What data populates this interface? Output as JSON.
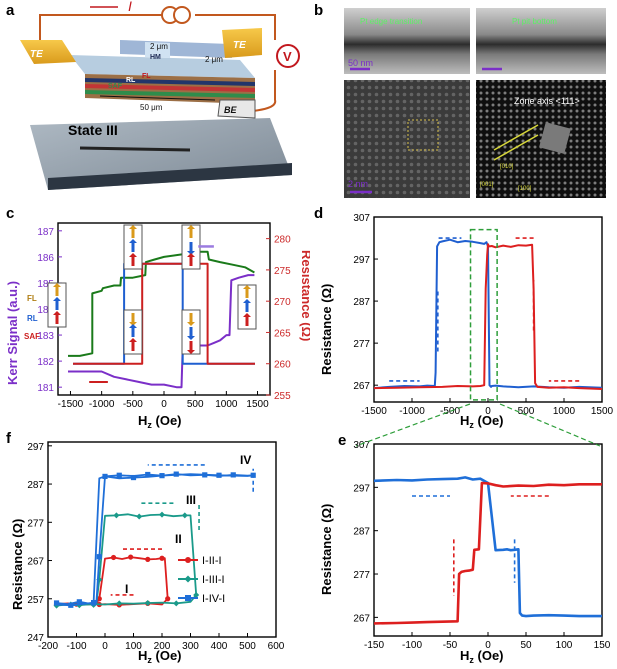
{
  "panels": {
    "a": {
      "label": "a",
      "te_left": "TE",
      "te_right": "TE",
      "current": "I",
      "voltmeter": "V",
      "hm": "HM",
      "fl": "FL",
      "rl": "RL",
      "saf": "SAF",
      "be": "BE",
      "dim_top": "2 μm",
      "dim_side": "2 μm",
      "dim_len": "50 μm",
      "state": "State III"
    },
    "b": {
      "label": "b",
      "tl_caption": "Pt edge transition",
      "tr_caption": "Pt pit bottom",
      "scale_top": "50 nm",
      "scale_bottom": "2 nm",
      "zone_axis": "Zone axis <111>",
      "idx_1": "[010]",
      "idx_2": "[001]",
      "idx_3": "[100]"
    },
    "c": {
      "label": "c",
      "ylabel_left": "Kerr Signal (a.u.)",
      "ylabel_right": "Resistance (Ω)",
      "xlabel": "H",
      "xlabel_sub": "z",
      "xlabel_unit": " (Oe)",
      "layer_fl": "FL",
      "layer_rl": "RL",
      "layer_saf": "SAF"
    },
    "d": {
      "label": "d",
      "ylabel": "Resistance (Ω)",
      "xlabel": "H",
      "xlabel_sub": "z",
      "xlabel_unit": " (Oe)"
    },
    "e": {
      "label": "e",
      "ylabel": "Resistance (Ω)",
      "xlabel": "H",
      "xlabel_sub": "z",
      "xlabel_unit": " (Oe)"
    },
    "f": {
      "label": "f",
      "ylabel": "Resistance (Ω)",
      "xlabel": "H",
      "xlabel_sub": "z",
      "xlabel_unit": " (Oe)",
      "state_1": "I",
      "state_2": "II",
      "state_3": "III",
      "state_4": "IV"
    }
  },
  "chart_data": [
    {
      "id": "c",
      "type": "line",
      "xlim": [
        -1700,
        1700
      ],
      "xticks": [
        -1500,
        -1000,
        -500,
        0,
        500,
        1000,
        1500
      ],
      "ylim": [
        180.7,
        187.3
      ],
      "yticks": [
        181,
        182,
        183,
        184,
        185,
        186,
        187
      ],
      "y2lim": [
        255,
        282.5
      ],
      "y2ticks": [
        255,
        260,
        265,
        270,
        275,
        280
      ],
      "colors": {
        "kerr_down": "#1a7a1a",
        "kerr_up": "#7b2fc8",
        "res_blue": "#1f5fd0",
        "res_red": "#cc1f1f",
        "left_axis": "#7b2fc8",
        "right_axis": "#cc2a2a"
      },
      "series": [
        {
          "key": "kerr_down",
          "axis": "left",
          "x": [
            -1540,
            -1350,
            -1150,
            -1150,
            -1000,
            -980,
            -800,
            -700,
            -690,
            -500,
            -300,
            -290,
            -150,
            0,
            300,
            500,
            700,
            720,
            900,
            1100,
            1300,
            1450
          ],
          "y": [
            182.2,
            182.2,
            182.3,
            184.6,
            184.7,
            184.8,
            184.9,
            184.9,
            185.2,
            185.2,
            185.3,
            185.8,
            185.9,
            186.0,
            186.1,
            186.2,
            186.2,
            185.9,
            185.8,
            185.7,
            185.6,
            185.4
          ]
        },
        {
          "key": "kerr_up",
          "axis": "left",
          "x": [
            -1540,
            -1200,
            -1000,
            -800,
            -600,
            -400,
            -200,
            0,
            200,
            280,
            300,
            500,
            700,
            800,
            900,
            1000,
            1050,
            1080,
            1200,
            1350,
            1450
          ],
          "y": [
            181.6,
            181.6,
            181.6,
            181.4,
            181.3,
            181.2,
            181.1,
            181.1,
            181.0,
            181.0,
            182.5,
            182.6,
            182.6,
            182.7,
            182.8,
            183.0,
            183.0,
            185.1,
            185.2,
            185.3,
            185.3
          ]
        },
        {
          "key": "res_blue",
          "axis": "right",
          "x": [
            -1460,
            -700,
            -700,
            -640,
            -640,
            0,
            300,
            300,
            700,
            700,
            1460
          ],
          "y": [
            260,
            260,
            260,
            260,
            276,
            276,
            276,
            260,
            260,
            260,
            260
          ]
        },
        {
          "key": "res_red",
          "axis": "right",
          "x": [
            -1460,
            -400,
            -350,
            -350,
            0,
            300,
            700,
            700,
            1460
          ],
          "y": [
            260,
            260,
            260,
            276,
            276,
            276,
            276,
            260,
            260
          ]
        }
      ]
    },
    {
      "id": "d",
      "type": "line",
      "xlim": [
        -1500,
        1500
      ],
      "xticks": [
        -1500,
        -1000,
        -500,
        0,
        500,
        1000,
        1500
      ],
      "ylim": [
        263,
        307
      ],
      "yticks": [
        267,
        277,
        287,
        297,
        307
      ],
      "colors": {
        "blue": "#1f5fd0",
        "red": "#dd1f1f",
        "dash_blue": "#1f5fd0",
        "dash_red": "#dd1f1f",
        "box": "#2e9e3a"
      },
      "series": [
        {
          "key": "blue",
          "x": [
            -1500,
            -1300,
            -1100,
            -900,
            -800,
            -700,
            -690,
            -670,
            -640,
            -600,
            -500,
            -400,
            -300,
            -200,
            -100,
            -50,
            -20,
            0,
            20,
            40,
            50,
            100,
            200,
            400,
            600,
            800,
            1000,
            1200,
            1500
          ],
          "y": [
            266.3,
            266.6,
            266.8,
            266.7,
            266.9,
            266.8,
            270,
            300,
            301,
            301.2,
            301.6,
            301.0,
            301.3,
            301.1,
            300.8,
            300.6,
            301,
            300,
            267,
            266.6,
            266.8,
            266.9,
            266.7,
            266.5,
            266.7,
            266.5,
            266.4,
            266.6,
            266.4
          ]
        },
        {
          "key": "red",
          "x": [
            -1500,
            -1200,
            -900,
            -600,
            -400,
            -200,
            -100,
            -50,
            -30,
            -10,
            0,
            10,
            20,
            50,
            100,
            200,
            300,
            400,
            500,
            580,
            600,
            620,
            650,
            800,
            1000,
            1200,
            1500
          ],
          "y": [
            266.3,
            266.4,
            266.5,
            266.6,
            266.8,
            266.7,
            266.8,
            267,
            290,
            298,
            300.5,
            300.1,
            300.0,
            300.1,
            299.8,
            300.2,
            299.9,
            300.3,
            300.2,
            300.4,
            290,
            267.5,
            266.6,
            266.4,
            266.5,
            266.3,
            266.1
          ]
        }
      ]
    },
    {
      "id": "e",
      "type": "line",
      "xlim": [
        -150,
        150
      ],
      "xticks": [
        -150,
        -100,
        -50,
        0,
        50,
        100,
        150
      ],
      "ylim": [
        262.7,
        307
      ],
      "yticks": [
        267,
        277,
        287,
        297,
        307
      ],
      "colors": {
        "blue": "#1f6fd8",
        "red": "#dd1f1f"
      },
      "series": [
        {
          "key": "blue",
          "x": [
            -150,
            -120,
            -100,
            -80,
            -60,
            -40,
            -30,
            -20,
            -10,
            0,
            10,
            20,
            25,
            30,
            35,
            40,
            42,
            45,
            50,
            60,
            80,
            100,
            120,
            150
          ],
          "y": [
            298.5,
            298.7,
            298.6,
            298.8,
            298.9,
            299.0,
            299.3,
            298.8,
            299.0,
            298.0,
            282.5,
            282.6,
            282.7,
            282.5,
            282.6,
            282.7,
            268,
            267.4,
            267.3,
            267.4,
            267.5,
            267.4,
            267.3,
            267.3
          ]
        },
        {
          "key": "red",
          "x": [
            -150,
            -120,
            -100,
            -80,
            -60,
            -40,
            -38,
            -35,
            -30,
            -25,
            -20,
            -18,
            -12,
            -8,
            0,
            10,
            20,
            40,
            60,
            80,
            100,
            120,
            150
          ],
          "y": [
            265.6,
            265.7,
            265.8,
            265.9,
            266.0,
            266.1,
            277,
            277.5,
            277.7,
            277.8,
            278.0,
            282.6,
            282.7,
            298,
            297.9,
            297.5,
            297.2,
            297.4,
            297.3,
            297.6,
            297.5,
            297.7,
            297.7
          ]
        }
      ]
    },
    {
      "id": "f",
      "type": "line",
      "xlim": [
        -200,
        600
      ],
      "xticks": [
        -200,
        -100,
        0,
        100,
        200,
        300,
        400,
        500,
        600
      ],
      "ylim": [
        247,
        298
      ],
      "yticks": [
        247,
        257,
        267,
        277,
        287,
        297
      ],
      "colors": {
        "I-II-I": "#dd1f1f",
        "I-III-I": "#1a9a8a",
        "I-IV-I": "#1f6fd8"
      },
      "legend_position": "lower-right",
      "series": [
        {
          "name": "I-II-I",
          "marker": "circle",
          "x": [
            -170,
            -130,
            -90,
            -60,
            -40,
            -30,
            -20,
            0,
            30,
            60,
            90,
            120,
            150,
            180,
            200,
            210,
            220,
            200,
            150,
            100,
            50,
            0,
            -20,
            -30,
            -40,
            -70,
            -100,
            -140,
            -170
          ],
          "y": [
            255.6,
            255.8,
            255.6,
            255.5,
            255.7,
            255.8,
            257,
            267.5,
            267.8,
            267.4,
            267.9,
            267.6,
            267.3,
            267.4,
            267.6,
            267.6,
            257,
            255.5,
            255.8,
            255.6,
            255.4,
            255.6,
            255.5,
            255.8,
            255.6,
            255.7,
            255.6,
            255.5,
            255.6
          ]
        },
        {
          "name": "I-III-I",
          "marker": "diamond",
          "x": [
            -170,
            -130,
            -90,
            -60,
            -40,
            -30,
            -20,
            0,
            40,
            80,
            120,
            160,
            200,
            240,
            280,
            300,
            320,
            300,
            250,
            200,
            150,
            100,
            50,
            0,
            -40,
            -80,
            -120,
            -170
          ],
          "y": [
            255.2,
            255.5,
            255.3,
            255.6,
            255.4,
            255.7,
            262,
            278.7,
            278.8,
            279.1,
            278.5,
            278.9,
            279.0,
            278.6,
            278.8,
            278.8,
            258,
            256.2,
            255.8,
            256.0,
            255.9,
            255.7,
            255.8,
            255.5,
            255.6,
            255.4,
            255.5,
            255.3
          ]
        },
        {
          "name": "I-IV-I",
          "marker": "square",
          "x": [
            -170,
            -130,
            -90,
            -60,
            -40,
            -30,
            -20,
            0,
            50,
            100,
            150,
            200,
            250,
            300,
            350,
            400,
            450,
            500,
            520,
            500,
            400,
            300,
            200,
            150,
            100,
            50,
            0,
            -20,
            -40,
            -80,
            -120,
            -170
          ],
          "y": [
            255.9,
            255.6,
            256.2,
            255.8,
            255.9,
            256.0,
            268,
            289.0,
            289.3,
            289.1,
            289.5,
            289.2,
            289.6,
            289.3,
            289.4,
            289.1,
            289.4,
            289.2,
            289.3,
            289.1,
            289.3,
            289.6,
            289.2,
            288.9,
            288.7,
            288.5,
            289.0,
            288.5,
            256.0,
            255.6,
            255.3,
            255.5
          ]
        }
      ]
    }
  ]
}
